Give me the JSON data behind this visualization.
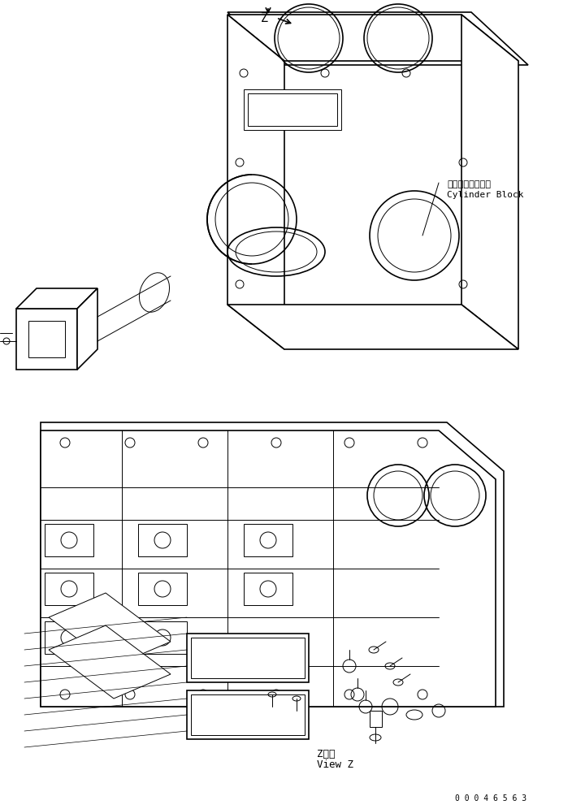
{
  "title": "",
  "background_color": "#ffffff",
  "line_color": "#000000",
  "text_color": "#000000",
  "label_cylinder_block_jp": "シリンダブロック",
  "label_cylinder_block_en": "Cylinder Block",
  "label_view_jp": "Z　視",
  "label_view_en": "View Z",
  "label_z_arrow": "Z",
  "doc_number": "0 0 0 4 6 5 6 3",
  "fig_width": 7.04,
  "fig_height": 9.96,
  "dpi": 100
}
